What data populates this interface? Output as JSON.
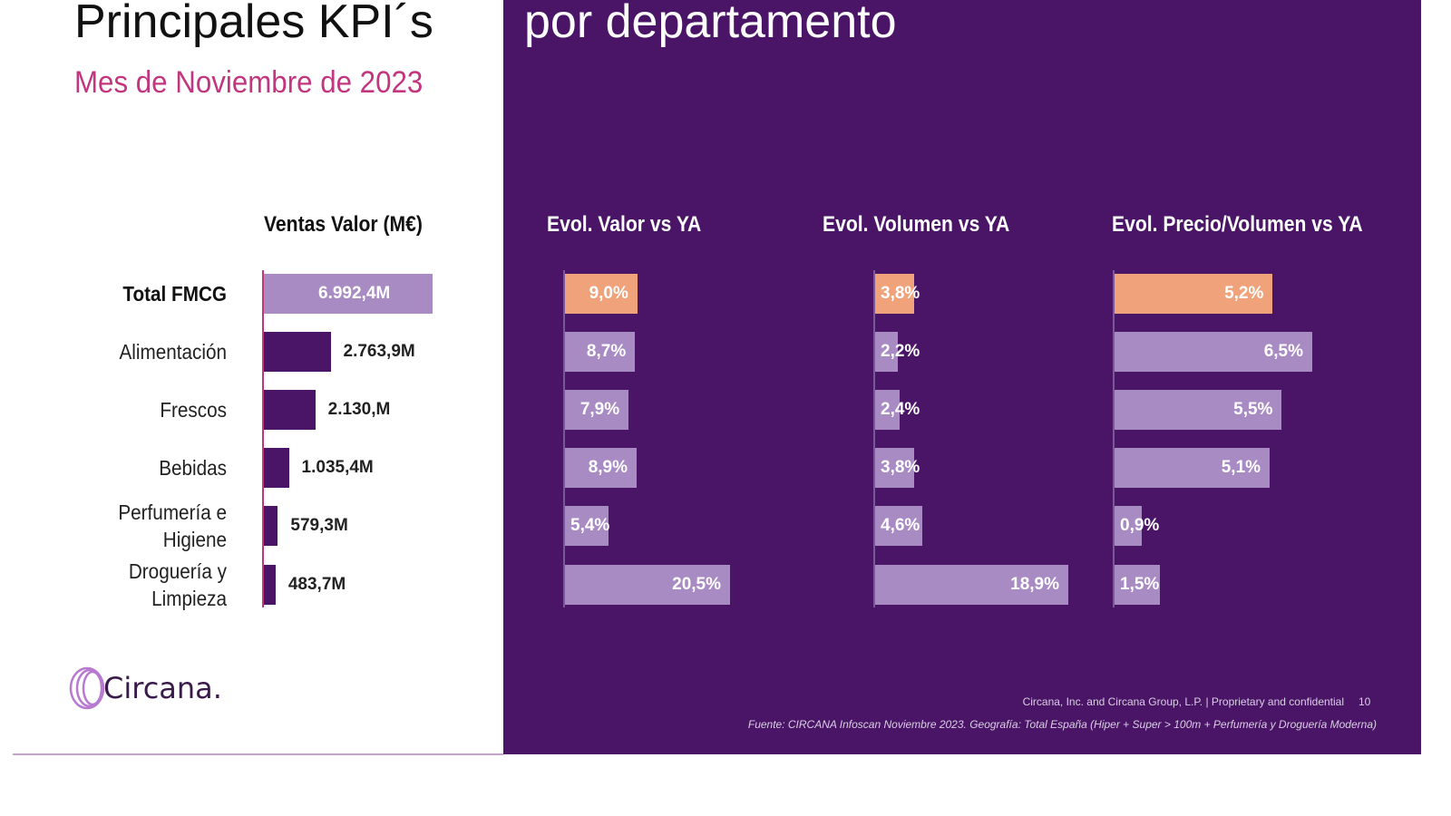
{
  "header": {
    "title_left": "Principales KPI´s",
    "title_right": "por departamento",
    "subtitle": "Mes de Noviembre de 2023"
  },
  "colors": {
    "background_panel": "#4a1566",
    "bar_light": "#a98bc4",
    "bar_dark": "#4a1566",
    "highlight": "#f0a27a",
    "subtitle": "#c2357f"
  },
  "chart_data": [
    {
      "type": "bar",
      "orientation": "horizontal",
      "title": "Ventas Valor (M€)",
      "categories": [
        "Total FMCG",
        "Alimentación",
        "Frescos",
        "Bebidas",
        "Perfumería e Higiene",
        "Droguería y Limpieza"
      ],
      "values": [
        6992.4,
        2763.9,
        2130,
        1035.4,
        579.3,
        483.7
      ],
      "labels": [
        "6.992,4M",
        "2.763,9M",
        "2.130,M",
        "1.035,4M",
        "579,3M",
        "483,7M"
      ]
    },
    {
      "type": "bar",
      "orientation": "horizontal",
      "title": "Evol. Valor vs YA",
      "values": [
        9.0,
        8.7,
        7.9,
        8.9,
        5.4,
        20.5
      ],
      "labels": [
        "9,0%",
        "8,7%",
        "7,9%",
        "8,9%",
        "5,4%",
        "20,5%"
      ]
    },
    {
      "type": "bar",
      "orientation": "horizontal",
      "title": "Evol. Volumen vs YA",
      "values": [
        3.8,
        2.2,
        2.4,
        3.8,
        4.6,
        18.9
      ],
      "labels": [
        "3,8%",
        "2,2%",
        "2,4%",
        "3,8%",
        "4,6%",
        "18,9%"
      ]
    },
    {
      "type": "bar",
      "orientation": "horizontal",
      "title": "Evol. Precio/Volumen vs YA",
      "values": [
        5.2,
        6.5,
        5.5,
        5.1,
        0.9,
        1.5
      ],
      "labels": [
        "5,2%",
        "6,5%",
        "5,5%",
        "5,1%",
        "0,9%",
        "1,5%"
      ]
    }
  ],
  "logo": {
    "text": "Circana."
  },
  "footer": {
    "copyright": "Circana, Inc. and Circana Group, L.P. | Proprietary and confidential",
    "page": "10",
    "source": "Fuente: CIRCANA Infoscan Noviembre 2023. Geografía: Total España (Hiper + Super > 100m + Perfumería y Droguería Moderna)"
  }
}
